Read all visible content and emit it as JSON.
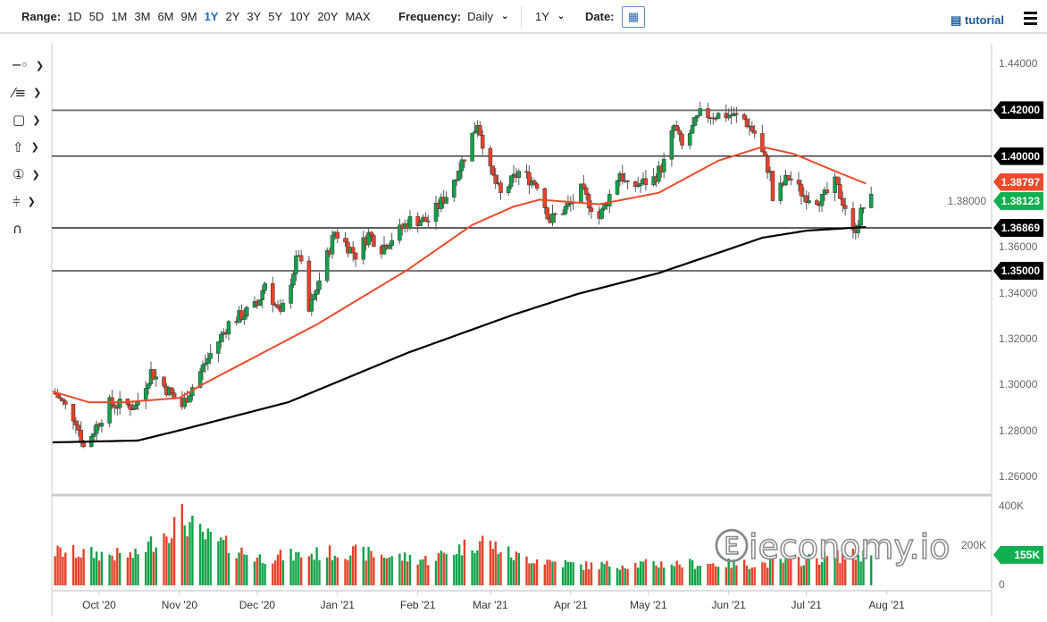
{
  "toolbar": {
    "range_label": "Range:",
    "ranges": [
      "1D",
      "5D",
      "1M",
      "3M",
      "6M",
      "9M",
      "1Y",
      "2Y",
      "3Y",
      "5Y",
      "10Y",
      "20Y",
      "MAX"
    ],
    "active_range": "1Y",
    "frequency_label": "Frequency:",
    "frequency_value": "Daily",
    "period_value": "1Y",
    "date_label": "Date:",
    "tutorial_label": "tutorial"
  },
  "tools": [
    "crosshair",
    "trendlines",
    "rectangle",
    "arrow",
    "number-marker",
    "measure",
    "magnet"
  ],
  "watermark": "ieconomy.io",
  "chart_data": {
    "type": "candlestick",
    "price_axis": {
      "ticks": [
        "1.44000",
        "1.42000",
        "1.40000",
        "1.38000",
        "1.36000",
        "1.34000",
        "1.32000",
        "1.30000",
        "1.28000",
        "1.26000"
      ],
      "range": [
        1.255,
        1.445
      ]
    },
    "volume_axis": {
      "ticks": [
        "400K",
        "200K",
        "0"
      ],
      "range": [
        0,
        400000
      ]
    },
    "x_ticks": [
      {
        "label": "Oct '20",
        "date": "2020-10-01"
      },
      {
        "label": "Nov '20",
        "date": "2020-11-01"
      },
      {
        "label": "Dec '20",
        "date": "2020-12-01"
      },
      {
        "label": "Jan '21",
        "date": "2021-01-01"
      },
      {
        "label": "Feb '21",
        "date": "2021-02-01"
      },
      {
        "label": "Mar '21",
        "date": "2021-03-01"
      },
      {
        "label": "Apr '21",
        "date": "2021-04-01"
      },
      {
        "label": "May '21",
        "date": "2021-05-01"
      },
      {
        "label": "Jun '21",
        "date": "2021-06-01"
      },
      {
        "label": "Jul '21",
        "date": "2021-07-01"
      },
      {
        "label": "Aug '21",
        "date": "2021-08-01"
      }
    ],
    "levels": [
      {
        "value": "1.42000",
        "price": 1.42,
        "color": "#777777"
      },
      {
        "value": "1.40000",
        "price": 1.4,
        "color": "#000000"
      },
      {
        "value": "1.36869",
        "price": 1.36869,
        "color": "#000000"
      },
      {
        "value": "1.35000",
        "price": 1.35,
        "color": "#777777"
      }
    ],
    "last_labels": [
      {
        "value": "1.38797",
        "price": 1.38797,
        "color": "#f04a2a",
        "series": "MA50"
      },
      {
        "value": "1.38123",
        "price": 1.38123,
        "color": "#10b050",
        "series": "close"
      }
    ],
    "volume_last": {
      "value": "155K",
      "color": "#10b050"
    },
    "colors": {
      "up": "#0fa348",
      "down": "#e8412a",
      "ma50": "#f04a2a",
      "ma200": "#000000"
    },
    "closes": [
      [
        "2020-09-14",
        1.2966
      ],
      [
        "2020-09-22",
        1.285
      ],
      [
        "2020-09-25",
        1.273
      ],
      [
        "2020-10-05",
        1.292
      ],
      [
        "2020-10-15",
        1.291
      ],
      [
        "2020-10-21",
        1.306
      ],
      [
        "2020-11-02",
        1.291
      ],
      [
        "2020-11-10",
        1.308
      ],
      [
        "2020-11-20",
        1.327
      ],
      [
        "2020-12-01",
        1.335
      ],
      [
        "2020-12-04",
        1.345
      ],
      [
        "2020-12-10",
        1.33
      ],
      [
        "2020-12-17",
        1.358
      ],
      [
        "2020-12-21",
        1.332
      ],
      [
        "2020-12-31",
        1.367
      ],
      [
        "2021-01-08",
        1.357
      ],
      [
        "2021-01-13",
        1.366
      ],
      [
        "2021-01-18",
        1.36
      ],
      [
        "2021-01-29",
        1.372
      ],
      [
        "2021-02-05",
        1.372
      ],
      [
        "2021-02-12",
        1.383
      ],
      [
        "2021-02-19",
        1.4
      ],
      [
        "2021-02-24",
        1.415
      ],
      [
        "2021-03-01",
        1.393
      ],
      [
        "2021-03-05",
        1.383
      ],
      [
        "2021-03-12",
        1.393
      ],
      [
        "2021-03-19",
        1.388
      ],
      [
        "2021-03-24",
        1.372
      ],
      [
        "2021-04-01",
        1.379
      ],
      [
        "2021-04-05",
        1.385
      ],
      [
        "2021-04-12",
        1.373
      ],
      [
        "2021-04-20",
        1.393
      ],
      [
        "2021-04-23",
        1.386
      ],
      [
        "2021-05-03",
        1.39
      ],
      [
        "2021-05-07",
        1.397
      ],
      [
        "2021-05-11",
        1.413
      ],
      [
        "2021-05-14",
        1.404
      ],
      [
        "2021-05-21",
        1.418
      ],
      [
        "2021-06-01",
        1.418
      ],
      [
        "2021-06-07",
        1.416
      ],
      [
        "2021-06-11",
        1.41
      ],
      [
        "2021-06-17",
        1.392
      ],
      [
        "2021-06-18",
        1.381
      ],
      [
        "2021-06-24",
        1.391
      ],
      [
        "2021-06-30",
        1.383
      ],
      [
        "2021-07-07",
        1.381
      ],
      [
        "2021-07-12",
        1.388
      ],
      [
        "2021-07-16",
        1.378
      ],
      [
        "2021-07-19",
        1.366
      ],
      [
        "2021-07-21",
        1.372
      ],
      [
        "2021-07-23",
        1.378
      ],
      [
        "2021-07-26",
        1.381
      ]
    ],
    "ma50": [
      [
        "2020-09-13",
        1.2974
      ],
      [
        "2020-09-27",
        1.2927
      ],
      [
        "2020-10-11",
        1.2927
      ],
      [
        "2020-11-01",
        1.2946
      ],
      [
        "2020-11-10",
        1.3005
      ],
      [
        "2020-12-24",
        1.3266
      ],
      [
        "2021-01-28",
        1.3504
      ],
      [
        "2021-02-22",
        1.37
      ],
      [
        "2021-03-10",
        1.378
      ],
      [
        "2021-03-20",
        1.381
      ],
      [
        "2021-04-12",
        1.379
      ],
      [
        "2021-05-05",
        1.384
      ],
      [
        "2021-05-28",
        1.398
      ],
      [
        "2021-06-14",
        1.404
      ],
      [
        "2021-06-26",
        1.401
      ],
      [
        "2021-07-13",
        1.393
      ],
      [
        "2021-07-24",
        1.388
      ]
    ],
    "ma200": [
      [
        "2020-09-13",
        1.2752
      ],
      [
        "2020-10-16",
        1.276
      ],
      [
        "2020-11-03",
        1.281
      ],
      [
        "2020-12-13",
        1.2927
      ],
      [
        "2021-01-28",
        1.3142
      ],
      [
        "2021-03-10",
        1.3309
      ],
      [
        "2021-04-04",
        1.34
      ],
      [
        "2021-05-05",
        1.349
      ],
      [
        "2021-06-14",
        1.3644
      ],
      [
        "2021-07-01",
        1.3675
      ],
      [
        "2021-07-24",
        1.3691
      ]
    ],
    "volume_k": [
      [
        "2020-09-14",
        170
      ],
      [
        "2020-10-15",
        150
      ],
      [
        "2020-11-02",
        340
      ],
      [
        "2020-11-10",
        250
      ],
      [
        "2020-12-01",
        140
      ],
      [
        "2021-01-05",
        170
      ],
      [
        "2021-02-05",
        130
      ],
      [
        "2021-02-26",
        230
      ],
      [
        "2021-03-10",
        150
      ],
      [
        "2021-04-05",
        100
      ],
      [
        "2021-05-05",
        110
      ],
      [
        "2021-06-15",
        110
      ],
      [
        "2021-07-15",
        150
      ],
      [
        "2021-07-26",
        155
      ]
    ]
  }
}
